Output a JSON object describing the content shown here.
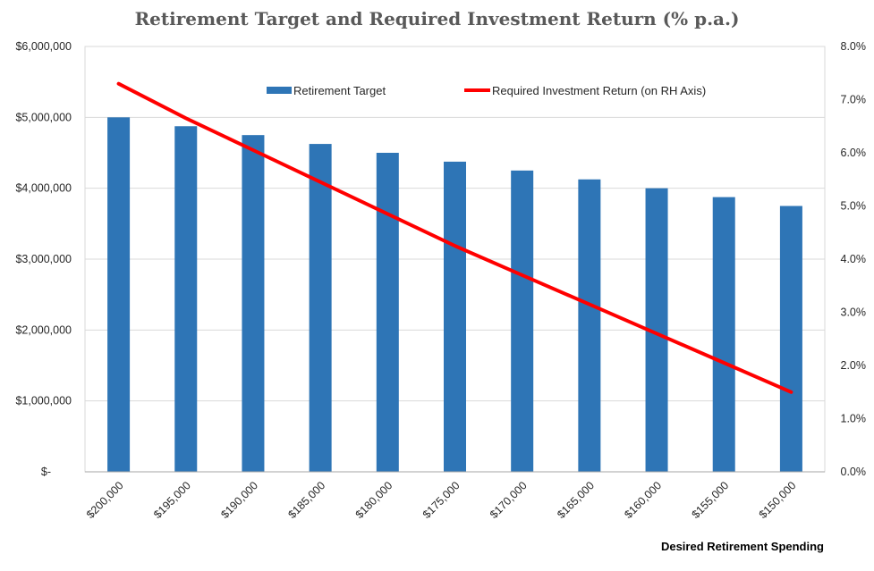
{
  "chart_data": {
    "type": "bar+line",
    "title": "Retirement Target and Required Investment Return (% p.a.)",
    "xlabel": "Desired Retirement Spending",
    "categories": [
      "$200,000",
      "$195,000",
      "$190,000",
      "$185,000",
      "$180,000",
      "$175,000",
      "$170,000",
      "$165,000",
      "$160,000",
      "$155,000",
      "$150,000"
    ],
    "series": [
      {
        "name": "Retirement Target",
        "kind": "bar",
        "axis": "left",
        "color": "#2E75B6",
        "values": [
          5000000,
          4875000,
          4750000,
          4625000,
          4500000,
          4375000,
          4250000,
          4125000,
          4000000,
          3875000,
          3750000
        ]
      },
      {
        "name": "Required Investment Return (on RH Axis)",
        "kind": "line",
        "axis": "right",
        "color": "#FF0000",
        "values": [
          7.3,
          6.65,
          6.05,
          5.45,
          4.85,
          4.25,
          3.7,
          3.15,
          2.6,
          2.05,
          1.5
        ]
      }
    ],
    "y_left": {
      "min": 0,
      "max": 6000000,
      "ticks": [
        0,
        1000000,
        2000000,
        3000000,
        4000000,
        5000000,
        6000000
      ],
      "tick_labels": [
        "$-",
        "$1,000,000",
        "$2,000,000",
        "$3,000,000",
        "$4,000,000",
        "$5,000,000",
        "$6,000,000"
      ]
    },
    "y_right": {
      "min": 0,
      "max": 8,
      "ticks": [
        0,
        1,
        2,
        3,
        4,
        5,
        6,
        7,
        8
      ],
      "tick_labels": [
        "0.0%",
        "1.0%",
        "2.0%",
        "3.0%",
        "4.0%",
        "5.0%",
        "6.0%",
        "7.0%",
        "8.0%"
      ]
    },
    "grid": true,
    "legend_position": "top-center"
  }
}
